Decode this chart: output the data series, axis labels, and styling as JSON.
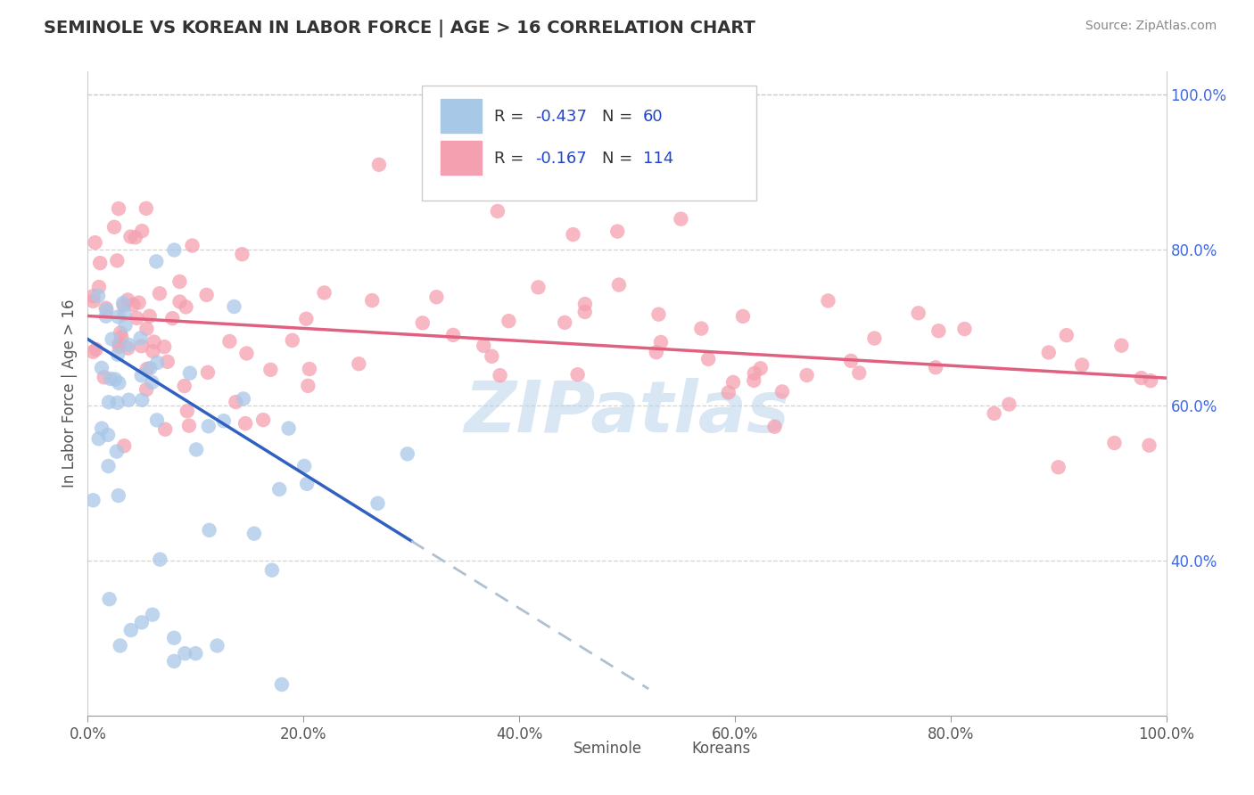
{
  "title": "SEMINOLE VS KOREAN IN LABOR FORCE | AGE > 16 CORRELATION CHART",
  "source": "Source: ZipAtlas.com",
  "ylabel": "In Labor Force | Age > 16",
  "xlim": [
    0.0,
    1.0
  ],
  "ylim": [
    0.2,
    1.03
  ],
  "seminole_color": "#a8c8e8",
  "korean_color": "#f5a0b0",
  "seminole_line_color": "#3060c0",
  "korean_line_color": "#e06080",
  "seminole_R": -0.437,
  "seminole_N": 60,
  "korean_R": -0.167,
  "korean_N": 114,
  "watermark": "ZIPatlas",
  "background_color": "#ffffff",
  "grid_color": "#c8c8c8",
  "ytick_labels": [
    "40.0%",
    "60.0%",
    "80.0%",
    "100.0%"
  ],
  "ytick_values": [
    0.4,
    0.6,
    0.8,
    1.0
  ],
  "xtick_labels": [
    "0.0%",
    "20.0%",
    "40.0%",
    "60.0%",
    "80.0%",
    "100.0%"
  ],
  "xtick_values": [
    0.0,
    0.2,
    0.4,
    0.6,
    0.8,
    1.0
  ],
  "sem_trend_x0": 0.0,
  "sem_trend_y0": 0.685,
  "sem_trend_x1": 0.3,
  "sem_trend_y1": 0.425,
  "sem_trend_dash_x1": 0.52,
  "kor_trend_x0": 0.0,
  "kor_trend_y0": 0.715,
  "kor_trend_x1": 1.0,
  "kor_trend_y1": 0.635
}
